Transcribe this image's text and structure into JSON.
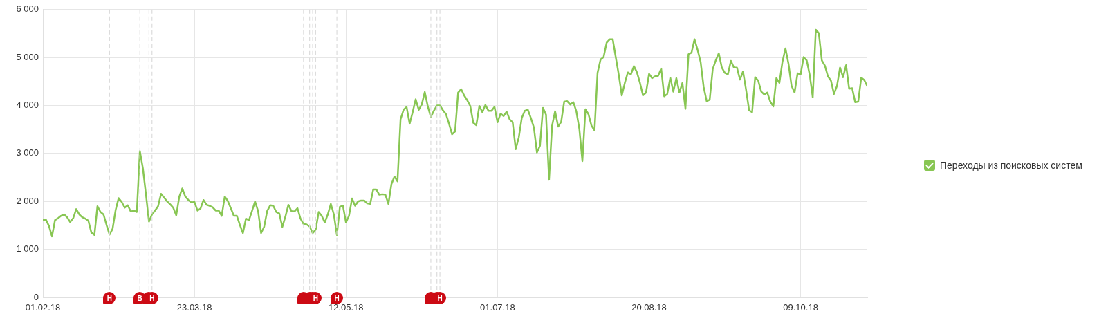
{
  "chart_data": {
    "type": "line",
    "xlim": [
      "2018-02-01",
      "2018-10-31"
    ],
    "xticks": [
      {
        "value": "2018-02-01",
        "label": "01.02.18"
      },
      {
        "value": "2018-03-23",
        "label": "23.03.18"
      },
      {
        "value": "2018-05-12",
        "label": "12.05.18"
      },
      {
        "value": "2018-07-01",
        "label": "01.07.18"
      },
      {
        "value": "2018-08-20",
        "label": "20.08.18"
      },
      {
        "value": "2018-10-09",
        "label": "09.10.18"
      }
    ],
    "ylim": [
      0,
      6000
    ],
    "yticks": [
      0,
      {
        "value": 1000,
        "label": "1 000"
      },
      {
        "value": 2000,
        "label": "2 000"
      },
      {
        "value": 3000,
        "label": "3 000"
      },
      {
        "value": 4000,
        "label": "4 000"
      },
      {
        "value": 5000,
        "label": "5 000"
      },
      {
        "value": 6000,
        "label": "6 000"
      }
    ],
    "grid": true,
    "legend": "right",
    "marker": "none",
    "line_style": "solid",
    "ref_lines": [
      {
        "axis": "x",
        "value": "2018-02-23",
        "label": "Н",
        "color": "#dcdcdc",
        "line_style": "dashed"
      },
      {
        "axis": "x",
        "value": "2018-03-05",
        "label": "В",
        "color": "#dcdcdc",
        "line_style": "dashed"
      },
      {
        "axis": "x",
        "value": "2018-03-08",
        "label": null,
        "color": "#dcdcdc",
        "line_style": "dashed"
      },
      {
        "axis": "x",
        "value": "2018-03-09",
        "label": "Н",
        "color": "#dcdcdc",
        "line_style": "dashed"
      },
      {
        "axis": "x",
        "value": "2018-04-28",
        "label": null,
        "color": "#dcdcdc",
        "line_style": "dashed"
      },
      {
        "axis": "x",
        "value": "2018-04-30",
        "label": null,
        "color": "#dcdcdc",
        "line_style": "dashed"
      },
      {
        "axis": "x",
        "value": "2018-05-01",
        "label": null,
        "color": "#dcdcdc",
        "line_style": "dashed"
      },
      {
        "axis": "x",
        "value": "2018-05-02",
        "label": "Н",
        "color": "#dcdcdc",
        "line_style": "dashed"
      },
      {
        "axis": "x",
        "value": "2018-05-09",
        "label": "Н",
        "color": "#dcdcdc",
        "line_style": "dashed"
      },
      {
        "axis": "x",
        "value": "2018-06-09",
        "label": null,
        "color": "#dcdcdc",
        "line_style": "dashed"
      },
      {
        "axis": "x",
        "value": "2018-06-11",
        "label": null,
        "color": "#dcdcdc",
        "line_style": "dashed"
      },
      {
        "axis": "x",
        "value": "2018-06-12",
        "label": "Н",
        "color": "#dcdcdc",
        "line_style": "dashed"
      }
    ],
    "x": [
      "2018-02-01",
      "2018-02-02",
      "2018-02-03",
      "2018-02-04",
      "2018-02-05",
      "2018-02-06",
      "2018-02-07",
      "2018-02-08",
      "2018-02-09",
      "2018-02-10",
      "2018-02-11",
      "2018-02-12",
      "2018-02-13",
      "2018-02-14",
      "2018-02-15",
      "2018-02-16",
      "2018-02-17",
      "2018-02-18",
      "2018-02-19",
      "2018-02-20",
      "2018-02-21",
      "2018-02-22",
      "2018-02-23",
      "2018-02-24",
      "2018-02-25",
      "2018-02-26",
      "2018-02-27",
      "2018-02-28",
      "2018-03-01",
      "2018-03-02",
      "2018-03-03",
      "2018-03-04",
      "2018-03-05",
      "2018-03-06",
      "2018-03-07",
      "2018-03-08",
      "2018-03-09",
      "2018-03-10",
      "2018-03-11",
      "2018-03-12",
      "2018-03-13",
      "2018-03-14",
      "2018-03-15",
      "2018-03-16",
      "2018-03-17",
      "2018-03-18",
      "2018-03-19",
      "2018-03-20",
      "2018-03-21",
      "2018-03-22",
      "2018-03-23",
      "2018-03-24",
      "2018-03-25",
      "2018-03-26",
      "2018-03-27",
      "2018-03-28",
      "2018-03-29",
      "2018-03-30",
      "2018-03-31",
      "2018-04-01",
      "2018-04-02",
      "2018-04-03",
      "2018-04-04",
      "2018-04-05",
      "2018-04-06",
      "2018-04-07",
      "2018-04-08",
      "2018-04-09",
      "2018-04-10",
      "2018-04-11",
      "2018-04-12",
      "2018-04-13",
      "2018-04-14",
      "2018-04-15",
      "2018-04-16",
      "2018-04-17",
      "2018-04-18",
      "2018-04-19",
      "2018-04-20",
      "2018-04-21",
      "2018-04-22",
      "2018-04-23",
      "2018-04-24",
      "2018-04-25",
      "2018-04-26",
      "2018-04-27",
      "2018-04-28",
      "2018-04-29",
      "2018-04-30",
      "2018-05-01",
      "2018-05-02",
      "2018-05-03",
      "2018-05-04",
      "2018-05-05",
      "2018-05-06",
      "2018-05-07",
      "2018-05-08",
      "2018-05-09",
      "2018-05-10",
      "2018-05-11",
      "2018-05-12",
      "2018-05-13",
      "2018-05-14",
      "2018-05-15",
      "2018-05-16",
      "2018-05-17",
      "2018-05-18",
      "2018-05-19",
      "2018-05-20",
      "2018-05-21",
      "2018-05-22",
      "2018-05-23",
      "2018-05-24",
      "2018-05-25",
      "2018-05-26",
      "2018-05-27",
      "2018-05-28",
      "2018-05-29",
      "2018-05-30",
      "2018-05-31",
      "2018-06-01",
      "2018-06-02",
      "2018-06-03",
      "2018-06-04",
      "2018-06-05",
      "2018-06-06",
      "2018-06-07",
      "2018-06-08",
      "2018-06-09",
      "2018-06-10",
      "2018-06-11",
      "2018-06-12",
      "2018-06-13",
      "2018-06-14",
      "2018-06-15",
      "2018-06-16",
      "2018-06-17",
      "2018-06-18",
      "2018-06-19",
      "2018-06-20",
      "2018-06-21",
      "2018-06-22",
      "2018-06-23",
      "2018-06-24",
      "2018-06-25",
      "2018-06-26",
      "2018-06-27",
      "2018-06-28",
      "2018-06-29",
      "2018-06-30",
      "2018-07-01",
      "2018-07-02",
      "2018-07-03",
      "2018-07-04",
      "2018-07-05",
      "2018-07-06",
      "2018-07-07",
      "2018-07-08",
      "2018-07-09",
      "2018-07-10",
      "2018-07-11",
      "2018-07-12",
      "2018-07-13",
      "2018-07-14",
      "2018-07-15",
      "2018-07-16",
      "2018-07-17",
      "2018-07-18",
      "2018-07-19",
      "2018-07-20",
      "2018-07-21",
      "2018-07-22",
      "2018-07-23",
      "2018-07-24",
      "2018-07-25",
      "2018-07-26",
      "2018-07-27",
      "2018-07-28",
      "2018-07-29",
      "2018-07-30",
      "2018-07-31",
      "2018-08-01",
      "2018-08-02",
      "2018-08-03",
      "2018-08-04",
      "2018-08-05",
      "2018-08-06",
      "2018-08-07",
      "2018-08-08",
      "2018-08-09",
      "2018-08-10",
      "2018-08-11",
      "2018-08-12",
      "2018-08-13",
      "2018-08-14",
      "2018-08-15",
      "2018-08-16",
      "2018-08-17",
      "2018-08-18",
      "2018-08-19",
      "2018-08-20",
      "2018-08-21",
      "2018-08-22",
      "2018-08-23",
      "2018-08-24",
      "2018-08-25",
      "2018-08-26",
      "2018-08-27",
      "2018-08-28",
      "2018-08-29",
      "2018-08-30",
      "2018-08-31",
      "2018-09-01",
      "2018-09-02",
      "2018-09-03",
      "2018-09-04",
      "2018-09-05",
      "2018-09-06",
      "2018-09-07",
      "2018-09-08",
      "2018-09-09",
      "2018-09-10",
      "2018-09-11",
      "2018-09-12",
      "2018-09-13",
      "2018-09-14",
      "2018-09-15",
      "2018-09-16",
      "2018-09-17",
      "2018-09-18",
      "2018-09-19",
      "2018-09-20",
      "2018-09-21",
      "2018-09-22",
      "2018-09-23",
      "2018-09-24",
      "2018-09-25",
      "2018-09-26",
      "2018-09-27",
      "2018-09-28",
      "2018-09-29",
      "2018-09-30",
      "2018-10-01",
      "2018-10-02",
      "2018-10-03",
      "2018-10-04",
      "2018-10-05",
      "2018-10-06",
      "2018-10-07",
      "2018-10-08",
      "2018-10-09",
      "2018-10-10",
      "2018-10-11",
      "2018-10-12",
      "2018-10-13",
      "2018-10-14",
      "2018-10-15",
      "2018-10-16",
      "2018-10-17",
      "2018-10-18",
      "2018-10-19",
      "2018-10-20",
      "2018-10-21",
      "2018-10-22",
      "2018-10-23",
      "2018-10-24",
      "2018-10-25",
      "2018-10-26",
      "2018-10-27",
      "2018-10-28",
      "2018-10-29",
      "2018-10-30",
      "2018-10-31"
    ],
    "series": [
      {
        "name": "Переходы из поисковых систем",
        "color": "#88c653",
        "values": [
          1620,
          1620,
          1490,
          1270,
          1610,
          1650,
          1700,
          1730,
          1670,
          1570,
          1650,
          1840,
          1730,
          1670,
          1640,
          1600,
          1350,
          1300,
          1900,
          1780,
          1730,
          1510,
          1310,
          1430,
          1820,
          2070,
          1990,
          1870,
          1920,
          1790,
          1810,
          1780,
          3050,
          2690,
          2150,
          1580,
          1730,
          1810,
          1900,
          2160,
          2080,
          2000,
          1940,
          1870,
          1710,
          2100,
          2270,
          2100,
          2030,
          1980,
          1990,
          1810,
          1850,
          2030,
          1930,
          1910,
          1880,
          1810,
          1810,
          1700,
          2100,
          2010,
          1860,
          1700,
          1700,
          1510,
          1340,
          1640,
          1610,
          1800,
          2000,
          1800,
          1340,
          1470,
          1800,
          1920,
          1910,
          1780,
          1750,
          1470,
          1680,
          1930,
          1800,
          1790,
          1860,
          1640,
          1530,
          1520,
          1480,
          1340,
          1410,
          1780,
          1700,
          1560,
          1730,
          1950,
          1730,
          1300,
          1890,
          1910,
          1560,
          1700,
          2060,
          1910,
          2000,
          2020,
          2020,
          1960,
          1950,
          2250,
          2250,
          2140,
          2150,
          2140,
          1950,
          2360,
          2520,
          2420,
          3710,
          3910,
          3970,
          3620,
          3860,
          4130,
          3910,
          4020,
          4280,
          3980,
          3760,
          3890,
          4000,
          4000,
          3900,
          3820,
          3620,
          3400,
          3460,
          4270,
          4340,
          4210,
          4110,
          3990,
          3640,
          3590,
          3990,
          3860,
          4010,
          3890,
          3890,
          3970,
          3650,
          3830,
          3780,
          3870,
          3710,
          3650,
          3090,
          3330,
          3740,
          3890,
          3910,
          3740,
          3540,
          3020,
          3160,
          3950,
          3810,
          2450,
          3580,
          3880,
          3560,
          3660,
          4080,
          4090,
          4020,
          4070,
          3880,
          3510,
          2840,
          3920,
          3820,
          3580,
          3480,
          4680,
          4960,
          5010,
          5310,
          5380,
          5380,
          5010,
          4640,
          4210,
          4470,
          4690,
          4650,
          4820,
          4690,
          4470,
          4210,
          4270,
          4660,
          4570,
          4610,
          4620,
          4770,
          4190,
          4240,
          4580,
          4290,
          4570,
          4270,
          4470,
          3930,
          5070,
          5100,
          5380,
          5160,
          4910,
          4390,
          4090,
          4120,
          4760,
          4940,
          5090,
          4790,
          4680,
          4650,
          4930,
          4790,
          4790,
          4540,
          4710,
          4330,
          3900,
          3860,
          4590,
          4520,
          4290,
          4230,
          4270,
          4080,
          3980,
          4570,
          4470,
          4910,
          5190,
          4870,
          4410,
          4270,
          4670,
          4650,
          5010,
          4940,
          4640,
          4170,
          5580,
          5510,
          4940,
          4830,
          4610,
          4520,
          4240,
          4410,
          4790,
          4590,
          4840,
          4350,
          4360,
          4070,
          4080,
          4580,
          4530,
          4400
        ]
      }
    ]
  }
}
